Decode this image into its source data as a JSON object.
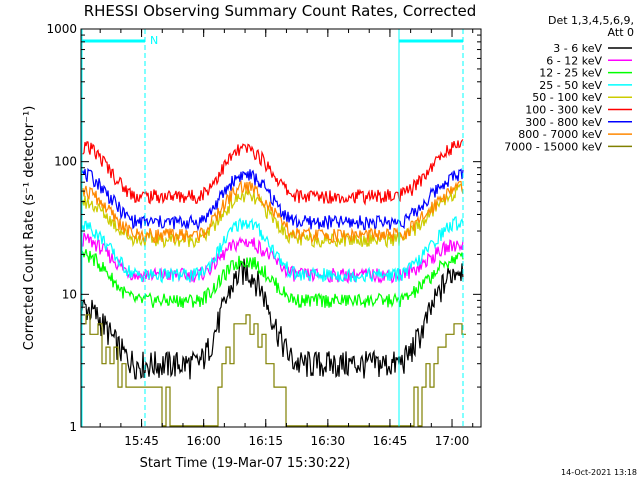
{
  "chart_data": {
    "type": "line",
    "title": "RHESSI Observing Summary Count Rates, Corrected",
    "xlabel": "Start Time (19-Mar-07 15:30:22)",
    "ylabel": "Corrected Count Rate (s⁻¹ detector⁻¹)",
    "yscale": "log",
    "ylim": [
      1,
      1000
    ],
    "y_tick_labels": [
      "1",
      "10",
      "100",
      "1000"
    ],
    "x_tick_labels": [
      "15:45",
      "16:00",
      "16:15",
      "16:30",
      "16:45",
      "17:00"
    ],
    "legend_header": [
      "Det 1,3,4,5,6,9,",
      "Att 0"
    ],
    "legend_placement": "right",
    "night_marker": "N",
    "timestamp": "14-Oct-2021 13:18",
    "series": [
      {
        "name": "3 - 6 keV",
        "color": "#000000",
        "values": [
          8,
          3,
          3,
          15,
          3,
          3,
          16
        ]
      },
      {
        "name": "6 - 12 keV",
        "color": "#ff00ff",
        "values": [
          26,
          14,
          14,
          25,
          14,
          14,
          24
        ]
      },
      {
        "name": "12 - 25 keV",
        "color": "#00ff00",
        "values": [
          20,
          9,
          9,
          18,
          9,
          9,
          19
        ]
      },
      {
        "name": "25 - 50 keV",
        "color": "#00ffff",
        "values": [
          33,
          14,
          14,
          35,
          14,
          14,
          35
        ]
      },
      {
        "name": "50 - 100 keV",
        "color": "#cccc00",
        "values": [
          50,
          26,
          26,
          55,
          26,
          26,
          60
        ]
      },
      {
        "name": "100 - 300 keV",
        "color": "#ff0000",
        "values": [
          130,
          55,
          55,
          125,
          55,
          55,
          135
        ]
      },
      {
        "name": "300 - 800 keV",
        "color": "#0000ff",
        "values": [
          80,
          35,
          35,
          80,
          35,
          35,
          80
        ]
      },
      {
        "name": "800 - 7000 keV",
        "color": "#ff8800",
        "values": [
          60,
          28,
          28,
          65,
          28,
          28,
          65
        ]
      },
      {
        "name": "7000 - 15000 keV",
        "color": "#808000",
        "values": [
          6,
          2,
          1,
          6,
          1,
          1,
          6
        ]
      }
    ]
  }
}
